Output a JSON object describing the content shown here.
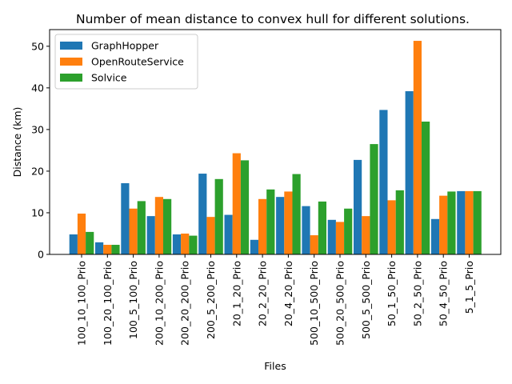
{
  "chart_data": {
    "type": "bar",
    "title": "Number of mean distance to convex hull for different solutions.",
    "xlabel": "Files",
    "ylabel": "Distance (km)",
    "ylim": [
      0,
      54
    ],
    "yticks": [
      0,
      10,
      20,
      30,
      40,
      50
    ],
    "grid": false,
    "legend": "top-left",
    "categories": [
      "100_10_100_Prio",
      "100_20_100_Prio",
      "100_5_100_Prio",
      "200_10_200_Prio",
      "200_20_200_Prio",
      "200_5_200_Prio",
      "20_1_20_Prio",
      "20_2_20_Prio",
      "20_4_20_Prio",
      "500_10_500_Prio",
      "500_20_500_Prio",
      "500_5_500_Prio",
      "50_1_50_Prio",
      "50_2_50_Prio",
      "50_4_50_Prio",
      "5_1_5_Prio"
    ],
    "series": [
      {
        "name": "GraphHopper",
        "color": "#1f77b4",
        "values": [
          4.8,
          2.9,
          17.1,
          9.2,
          4.8,
          19.4,
          9.5,
          3.5,
          13.8,
          11.6,
          8.3,
          22.7,
          34.7,
          39.2,
          8.5,
          15.2
        ]
      },
      {
        "name": "OpenRouteService",
        "color": "#ff7f0e",
        "values": [
          9.8,
          2.3,
          11.0,
          13.8,
          5.0,
          9.0,
          24.3,
          13.3,
          15.1,
          4.6,
          7.8,
          9.2,
          13.0,
          51.3,
          14.1,
          15.2
        ]
      },
      {
        "name": "Solvice",
        "color": "#2ca02c",
        "values": [
          5.4,
          2.3,
          12.8,
          13.3,
          4.5,
          18.1,
          22.6,
          15.6,
          19.3,
          12.7,
          11.0,
          26.5,
          15.4,
          31.9,
          15.1,
          15.2
        ]
      }
    ]
  }
}
